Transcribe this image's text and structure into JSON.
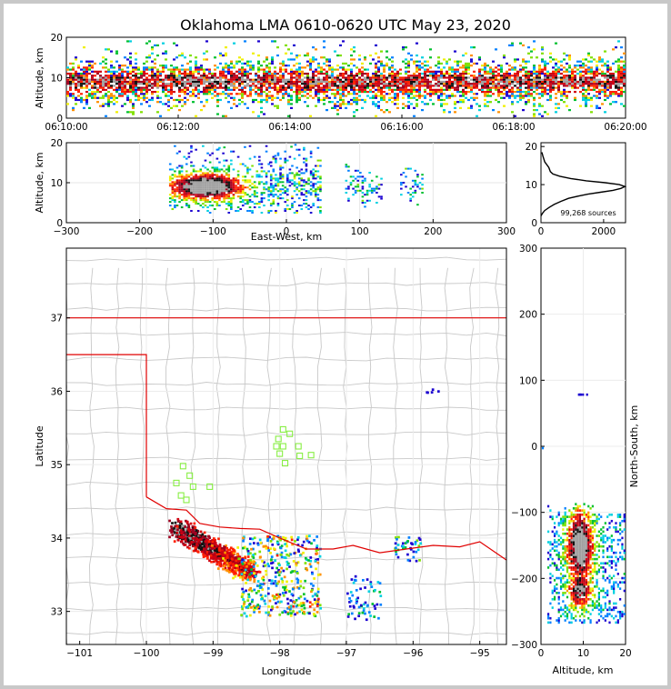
{
  "title": "Oklahoma LMA 0610-0620 UTC May 23, 2020",
  "chart_data": [
    {
      "id": "time-height",
      "type": "heatmap",
      "x_axis": "time",
      "xlim": [
        "06:10:00",
        "06:20:00"
      ],
      "xticks": [
        "06:10:00",
        "06:12:00",
        "06:14:00",
        "06:16:00",
        "06:18:00",
        "06:20:00"
      ],
      "ylabel": "Altitude, km",
      "ylim": [
        0,
        20
      ],
      "yticks": [
        "0",
        "10",
        "20"
      ],
      "core_band_km": [
        6,
        12
      ],
      "sparse_band_km": [
        3,
        19
      ]
    },
    {
      "id": "east-west-altitude",
      "type": "heatmap",
      "xlabel": "East-West, km",
      "xlim": [
        -300,
        300
      ],
      "xticks": [
        "−300",
        "−200",
        "−100",
        "0",
        "100",
        "200",
        "300"
      ],
      "ylabel": "Altitude, km",
      "ylim": [
        0,
        20
      ],
      "yticks": [
        "0",
        "10",
        "20"
      ],
      "main_cell_x_km": [
        -160,
        45
      ],
      "secondary_cells_x_km": [
        [
          80,
          130
        ],
        [
          155,
          185
        ]
      ]
    },
    {
      "id": "altitude-histogram",
      "type": "line",
      "xlim": [
        0,
        2700
      ],
      "xticks": [
        "0",
        "2000"
      ],
      "ylim": [
        0,
        21
      ],
      "yticks": [
        "0",
        "10",
        "20"
      ],
      "annotation": "99,268 sources",
      "x": [
        0,
        50,
        120,
        260,
        420,
        640,
        880,
        1200,
        1500,
        1900,
        2300,
        2550,
        2680,
        2500,
        2050,
        1450,
        950,
        600,
        380,
        300,
        250,
        120,
        60,
        30
      ],
      "y": [
        1.8,
        2.5,
        3.2,
        4.0,
        4.8,
        5.6,
        6.4,
        7.0,
        7.5,
        8.0,
        8.5,
        9.0,
        9.5,
        10.0,
        10.5,
        11.0,
        11.6,
        12.2,
        12.8,
        13.4,
        14.5,
        16.0,
        17.5,
        18.5
      ]
    },
    {
      "id": "plan-view",
      "type": "heatmap",
      "xlabel": "Longitude",
      "xlim": [
        -101.2,
        -94.6
      ],
      "xticks": [
        "−101",
        "−100",
        "−99",
        "−98",
        "−97",
        "−96",
        "−95"
      ],
      "ylabel": "Latitude",
      "ylim": [
        32.55,
        37.95
      ],
      "yticks": [
        "33",
        "34",
        "35",
        "36",
        "37"
      ],
      "stations": [
        [
          -97.95,
          35.48
        ],
        [
          -98.02,
          35.35
        ],
        [
          -97.85,
          35.42
        ],
        [
          -98.05,
          35.25
        ],
        [
          -97.95,
          35.25
        ],
        [
          -97.72,
          35.25
        ],
        [
          -97.53,
          35.13
        ],
        [
          -98.0,
          35.15
        ],
        [
          -97.92,
          35.02
        ],
        [
          -97.7,
          35.12
        ],
        [
          -99.45,
          34.98
        ],
        [
          -99.35,
          34.85
        ],
        [
          -99.55,
          34.75
        ],
        [
          -99.3,
          34.7
        ],
        [
          -99.48,
          34.58
        ],
        [
          -99.4,
          34.52
        ],
        [
          -99.05,
          34.7
        ]
      ]
    },
    {
      "id": "altitude-north-south",
      "type": "heatmap",
      "xlabel": "Altitude, km",
      "xlim": [
        0,
        20
      ],
      "xticks": [
        "0",
        "10",
        "20"
      ],
      "ylabel": "North-South, km",
      "ylim": [
        -300,
        300
      ],
      "yticks": [
        "−300",
        "−200",
        "−100",
        "0",
        "100",
        "200",
        "300"
      ]
    }
  ]
}
